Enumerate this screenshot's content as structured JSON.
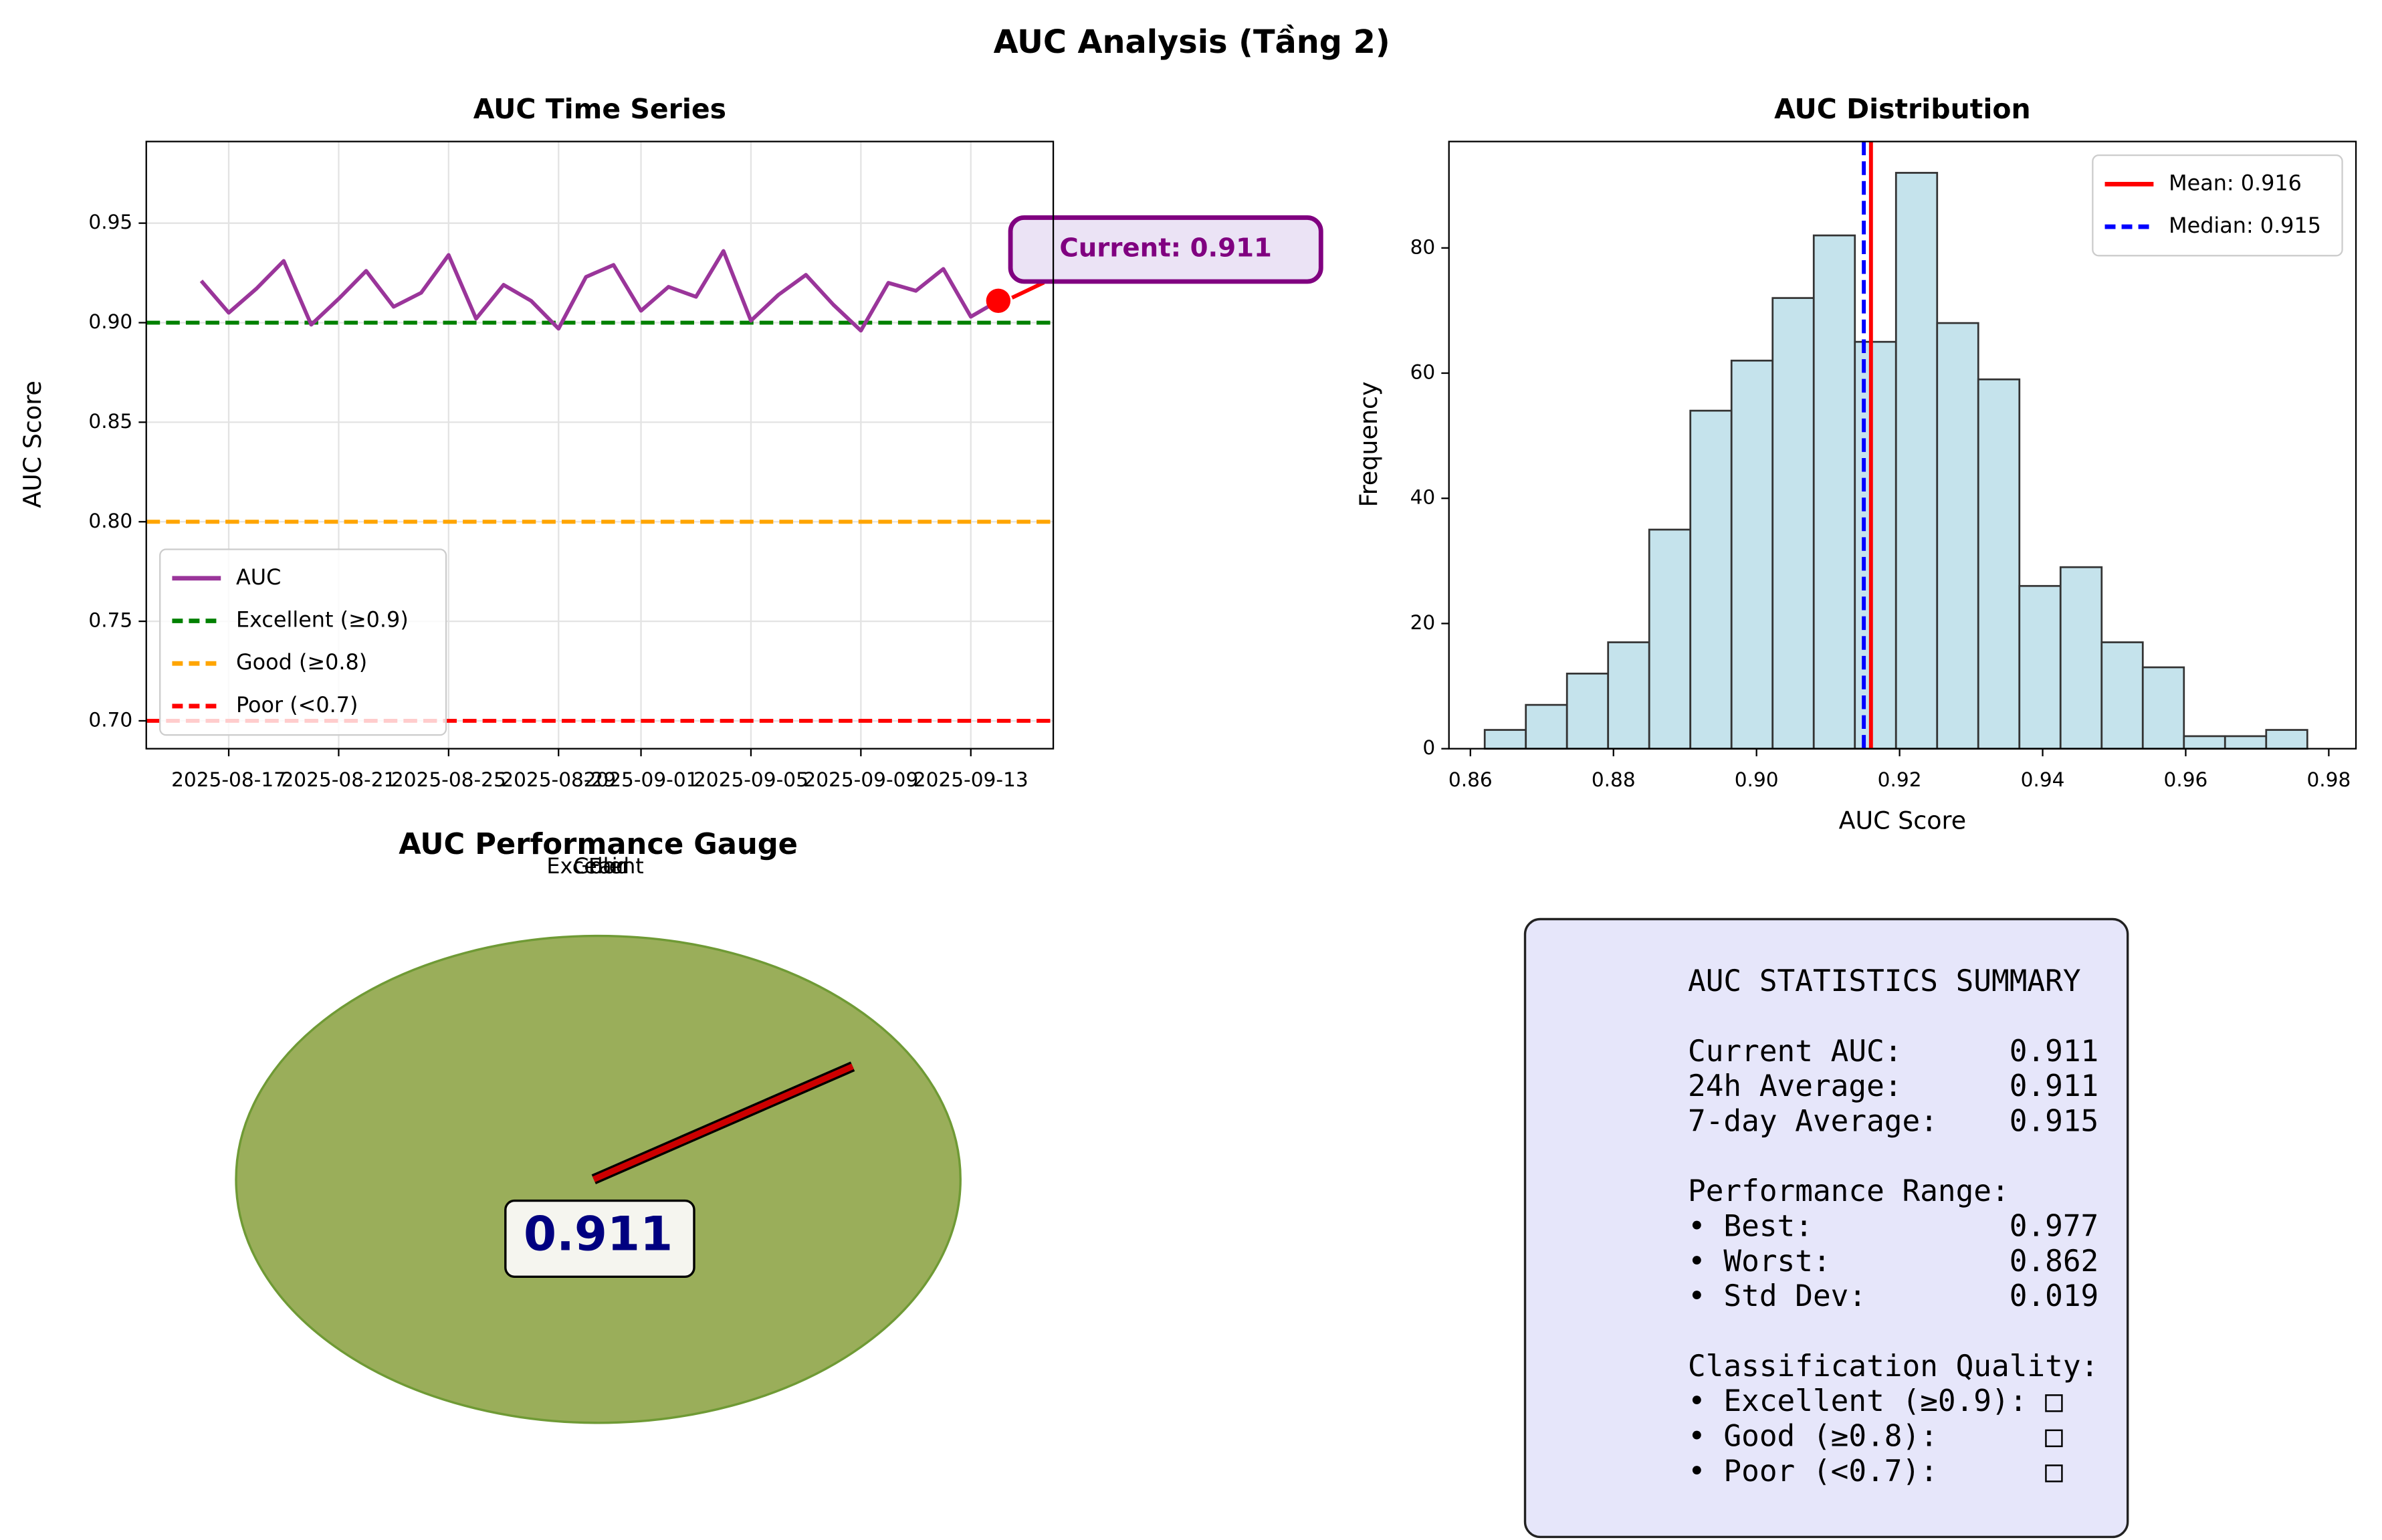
{
  "title": "AUC Analysis (Tầng 2)",
  "chart_data": [
    {
      "type": "line",
      "title": "AUC Time Series",
      "y_label": "AUC Score",
      "x": [
        "2025-08-16",
        "2025-08-17",
        "2025-08-18",
        "2025-08-19",
        "2025-08-20",
        "2025-08-21",
        "2025-08-22",
        "2025-08-23",
        "2025-08-24",
        "2025-08-25",
        "2025-08-26",
        "2025-08-27",
        "2025-08-28",
        "2025-08-29",
        "2025-08-30",
        "2025-08-31",
        "2025-09-01",
        "2025-09-02",
        "2025-09-03",
        "2025-09-04",
        "2025-09-05",
        "2025-09-06",
        "2025-09-07",
        "2025-09-08",
        "2025-09-09",
        "2025-09-10",
        "2025-09-11",
        "2025-09-12",
        "2025-09-13",
        "2025-09-14"
      ],
      "series": [
        {
          "name": "AUC",
          "color": "#9a359a",
          "values": [
            0.921,
            0.905,
            0.917,
            0.931,
            0.899,
            0.912,
            0.926,
            0.908,
            0.915,
            0.934,
            0.902,
            0.919,
            0.911,
            0.897,
            0.923,
            0.929,
            0.906,
            0.918,
            0.913,
            0.936,
            0.901,
            0.914,
            0.924,
            0.909,
            0.896,
            0.92,
            0.916,
            0.927,
            0.903,
            0.911
          ]
        }
      ],
      "hlines": [
        {
          "name": "Excellent (≥0.9)",
          "value": 0.9,
          "color": "#008000"
        },
        {
          "name": "Good (≥0.8)",
          "value": 0.8,
          "color": "#ffa500"
        },
        {
          "name": "Poor (<0.7)",
          "value": 0.7,
          "color": "#ff0000"
        }
      ],
      "annotation": "Current: 0.911",
      "xlim": [
        "2025-08-14",
        "2025-09-16"
      ],
      "xticks": [
        "2025-08-17",
        "2025-08-21",
        "2025-08-25",
        "2025-08-29",
        "2025-09-01",
        "2025-09-05",
        "2025-09-09",
        "2025-09-13"
      ],
      "ylim": [
        0.686,
        0.991
      ],
      "yticks": [
        {
          "value": 0.7,
          "label": "0.70"
        },
        0.75,
        {
          "value": 0.8,
          "label": "0.80"
        },
        0.85,
        {
          "value": 0.9,
          "label": "0.90"
        },
        0.95
      ],
      "grid": true,
      "legend": "lower left"
    },
    {
      "type": "histogram",
      "title": "AUC Distribution",
      "x_label": "AUC Score",
      "y_label": "Frequency",
      "bins": [
        0.862,
        0.86775,
        0.8735,
        0.87925,
        0.885,
        0.89075,
        0.8965,
        0.90225,
        0.908,
        0.91375,
        0.9195,
        0.92525,
        0.931,
        0.93675,
        0.9425,
        0.94825,
        0.954,
        0.95975,
        0.9655,
        0.97125,
        0.977
      ],
      "counts": [
        3,
        7,
        12,
        17,
        35,
        54,
        62,
        72,
        82,
        65,
        92,
        68,
        59,
        26,
        29,
        17,
        13,
        2,
        2,
        3
      ],
      "color": "#c5e3ec",
      "vlines": [
        {
          "name": "Mean: 0.916",
          "value": 0.916,
          "color": "#ff0000",
          "style": "solid"
        },
        {
          "name": "Median: 0.915",
          "value": 0.915,
          "color": "#0000ff",
          "style": "dashed"
        }
      ],
      "xlim": [
        0.857,
        0.9838
      ],
      "xticks": [
        0.86,
        0.88,
        {
          "value": 0.9,
          "label": "0.90"
        },
        0.92,
        0.94,
        0.96,
        0.98
      ],
      "ylim": [
        0,
        97
      ],
      "yticks": [
        0,
        20,
        40,
        60,
        80
      ],
      "legend": "upper right"
    },
    {
      "type": "gauge",
      "title": "AUC Performance Gauge",
      "value": 0.911,
      "color": "#9aae5a",
      "labels": [
        "Excellent",
        "Good",
        "Fair"
      ]
    }
  ],
  "summary": {
    "title": "AUC STATISTICS SUMMARY",
    "sections": [
      [
        "Current AUC:      0.911",
        "24h Average:      0.911",
        "7-day Average:    0.915"
      ],
      [
        "Performance Range:",
        "• Best:           0.977",
        "• Worst:          0.862",
        "• Std Dev:        0.019"
      ],
      [
        "Classification Quality:",
        "• Excellent (≥0.9): □",
        "• Good (≥0.8):      □",
        "• Poor (<0.7):      □"
      ]
    ]
  }
}
